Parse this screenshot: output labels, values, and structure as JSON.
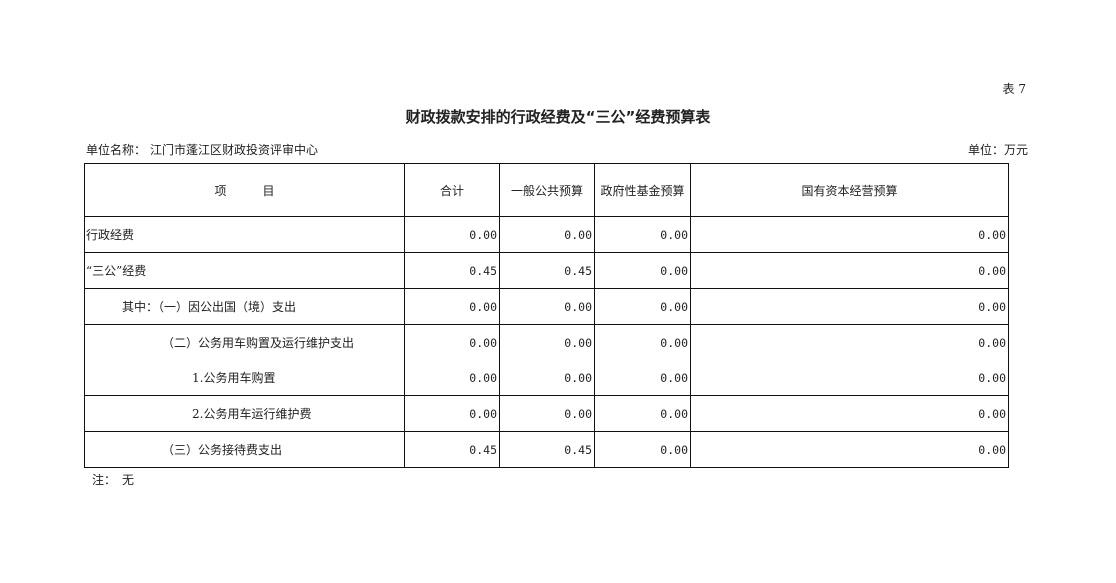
{
  "table_no": "表 7",
  "title": "财政拨款安排的行政经费及“三公”经费预算表",
  "unit_label": "单位名称：",
  "unit_name": "江门市蓬江区财政投资评审中心",
  "currency": "单位：万元",
  "headers": [
    "项　　　目",
    "合计",
    "一般公共预算",
    "政府性基金预算",
    "国有资本经营预算"
  ],
  "rows": [
    {
      "item": "行政经费",
      "values": [
        "0.00",
        "0.00",
        "0.00",
        "0.00"
      ]
    },
    {
      "item": "“三公”经费",
      "values": [
        "0.45",
        "0.45",
        "0.00",
        "0.00"
      ]
    },
    {
      "item": "其中：（一）因公出国（境）支出",
      "values": [
        "0.00",
        "0.00",
        "0.00",
        "0.00"
      ]
    },
    {
      "item": "（二）公务用车购置及运行维护支出",
      "values": [
        "0.00",
        "0.00",
        "0.00",
        "0.00"
      ]
    },
    {
      "item": "1.公务用车购置",
      "values": [
        "0.00",
        "0.00",
        "0.00",
        "0.00"
      ]
    },
    {
      "item": "2.公务用车运行维护费",
      "values": [
        "0.00",
        "0.00",
        "0.00",
        "0.00"
      ]
    },
    {
      "item": "（三）公务接待费支出",
      "values": [
        "0.45",
        "0.45",
        "0.00",
        "0.00"
      ]
    }
  ],
  "note": "注：　无"
}
